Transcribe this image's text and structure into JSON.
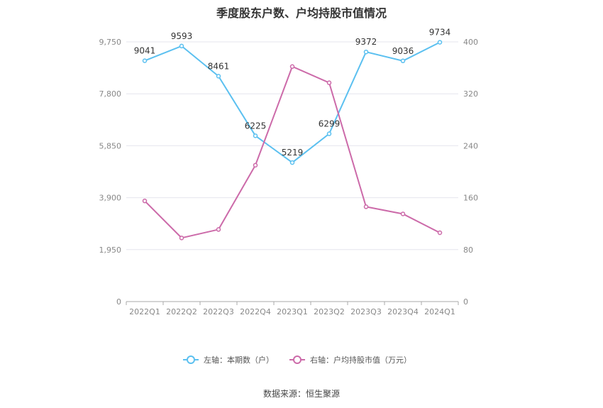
{
  "title": "季度股东户数、户均持股市值情况",
  "source": "数据来源：恒生聚源",
  "chart_data": {
    "type": "line",
    "categories": [
      "2022Q1",
      "2022Q2",
      "2022Q3",
      "2022Q4",
      "2023Q1",
      "2023Q2",
      "2023Q3",
      "2023Q4",
      "2024Q1"
    ],
    "left_axis": {
      "ylim": [
        0,
        9750
      ],
      "ticks": [
        0,
        1950,
        3900,
        5850,
        7800,
        9750
      ],
      "tick_labels": [
        "0",
        "1,950",
        "3,900",
        "5,850",
        "7,800",
        "9,750"
      ]
    },
    "right_axis": {
      "ylim": [
        0,
        400
      ],
      "ticks": [
        0,
        80,
        160,
        240,
        320,
        400
      ],
      "tick_labels": [
        "0",
        "80",
        "160",
        "240",
        "320",
        "400"
      ]
    },
    "series": [
      {
        "name": "左轴：本期数（户）",
        "axis": "left",
        "color": "#5bc0f0",
        "values": [
          9041,
          9593,
          8461,
          6225,
          5219,
          6299,
          9372,
          9036,
          9734
        ],
        "labels": [
          "9041",
          "9593",
          "8461",
          "6225",
          "5219",
          "6299",
          "9372",
          "9036",
          "9734"
        ]
      },
      {
        "name": "右轴：户均持股市值（万元）",
        "axis": "right",
        "color": "#cc6aa9",
        "values": [
          155,
          98,
          111,
          210,
          362,
          337,
          146,
          135,
          106
        ]
      }
    ],
    "grid": true,
    "legend_position": "bottom"
  }
}
